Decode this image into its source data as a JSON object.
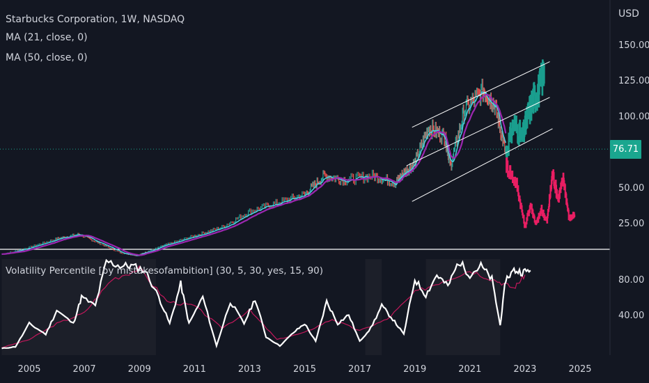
{
  "header": {
    "title": "Starbucks Corporation, 1W, NASDAQ",
    "ma21": "MA (21, close, 0)",
    "ma50": "MA (50, close, 0)",
    "currency": "USD",
    "last_price": "76.71"
  },
  "oscillator": {
    "title": "Volatility Percentile [by mistakesofambition] (30, 5, 30, yes, 15, 90)"
  },
  "colors": {
    "background": "#131722",
    "candle_up": "#26a69a",
    "candle_forecast_up": "#1a9e8e",
    "candle_forecast_down": "#e91e63",
    "ma21": "#4dd0e1",
    "ma50": "#9c27b0",
    "channel": "#ffffff",
    "osc_line": "#ffffff",
    "osc_signal": "#c2185b",
    "text": "#d1d4dc",
    "divider": "#ffffff"
  },
  "chart_data": [
    {
      "type": "line",
      "title": "Starbucks Corporation, 1W, NASDAQ",
      "ylabel": "USD",
      "ylim": [
        2,
        170
      ],
      "y_ticks": [
        25,
        50,
        75,
        100,
        125,
        150
      ],
      "y_tick_labels": [
        "25.00",
        "50.00",
        "",
        "100.00",
        "125.00",
        "150.00"
      ],
      "x_ticks": [
        2005,
        2007,
        2009,
        2011,
        2013,
        2015,
        2017,
        2019,
        2021,
        2023,
        2025
      ],
      "series": [
        {
          "role": "price",
          "x": [
            2004.0,
            2005.0,
            2006.0,
            2006.8,
            2007.5,
            2008.3,
            2008.9,
            2009.3,
            2010.0,
            2011.0,
            2012.0,
            2013.0,
            2014.0,
            2015.0,
            2015.7,
            2016.5,
            2017.5,
            2018.3,
            2018.6,
            2019.0,
            2019.5,
            2020.1,
            2020.3,
            2020.8,
            2021.5,
            2021.9,
            2022.3
          ],
          "values": [
            3,
            8,
            14,
            17,
            11,
            4,
            2,
            5,
            10,
            16,
            22,
            33,
            39,
            45,
            58,
            55,
            58,
            53,
            60,
            67,
            92,
            85,
            65,
            104,
            118,
            108,
            74
          ]
        },
        {
          "role": "projection",
          "x": [
            2022.3,
            2022.6,
            2022.9,
            2023.1,
            2023.3,
            2023.5,
            2023.7
          ],
          "values": [
            74,
            95,
            84,
            100,
            112,
            118,
            132
          ]
        },
        {
          "role": "projection",
          "x": [
            2022.3,
            2022.7,
            2023.0,
            2023.2,
            2023.4,
            2023.6,
            2023.8,
            2024.0,
            2024.2,
            2024.4,
            2024.6,
            2024.8
          ],
          "values": [
            66,
            52,
            22,
            38,
            24,
            34,
            26,
            60,
            42,
            56,
            28,
            30
          ]
        }
      ],
      "channels": [
        {
          "x": [
            2018.9,
            2023.9
          ],
          "values": [
            92,
            138
          ]
        },
        {
          "x": [
            2018.7,
            2023.9
          ],
          "values": [
            65,
            113
          ]
        },
        {
          "x": [
            2018.9,
            2024.0
          ],
          "values": [
            40,
            91
          ]
        }
      ]
    },
    {
      "type": "line",
      "title": "Volatility Percentile [by mistakesofambition] (30, 5, 30, yes, 15, 90)",
      "ylim": [
        0,
        110
      ],
      "y_ticks": [
        40,
        80
      ],
      "y_tick_labels": [
        "40.00",
        "80.00"
      ],
      "series": [
        {
          "role": "percentile",
          "x": [
            2004.0,
            2004.5,
            2005.0,
            2005.6,
            2006.0,
            2006.6,
            2006.9,
            2007.4,
            2007.8,
            2008.3,
            2008.7,
            2009.2,
            2009.7,
            2010.1,
            2010.5,
            2010.8,
            2011.3,
            2011.8,
            2012.3,
            2012.8,
            2013.2,
            2013.6,
            2014.1,
            2014.6,
            2015.0,
            2015.4,
            2015.8,
            2016.2,
            2016.6,
            2017.0,
            2017.4,
            2017.8,
            2018.2,
            2018.6,
            2019.0,
            2019.4,
            2019.8,
            2020.2,
            2020.6,
            2021.0,
            2021.4,
            2021.8,
            2022.1,
            2022.3,
            2022.6,
            2022.9,
            2023.2
          ],
          "values": [
            2,
            4,
            30,
            18,
            45,
            30,
            60,
            50,
            100,
            95,
            95,
            90,
            60,
            30,
            75,
            30,
            60,
            5,
            55,
            30,
            58,
            15,
            5,
            20,
            30,
            10,
            55,
            30,
            40,
            10,
            25,
            50,
            35,
            18,
            80,
            62,
            85,
            72,
            100,
            85,
            95,
            80,
            28,
            80,
            90,
            88,
            90
          ]
        },
        {
          "role": "signal",
          "x": [
            2004.0,
            2005.0,
            2006.0,
            2007.0,
            2008.0,
            2009.0,
            2010.0,
            2011.0,
            2012.0,
            2013.0,
            2014.0,
            2015.0,
            2016.0,
            2017.0,
            2018.0,
            2019.0,
            2020.0,
            2021.0,
            2022.0,
            2022.6,
            2023.0
          ],
          "values": [
            3,
            12,
            30,
            42,
            80,
            92,
            55,
            50,
            25,
            45,
            12,
            20,
            35,
            22,
            35,
            65,
            78,
            90,
            78,
            70,
            85
          ]
        }
      ]
    }
  ]
}
